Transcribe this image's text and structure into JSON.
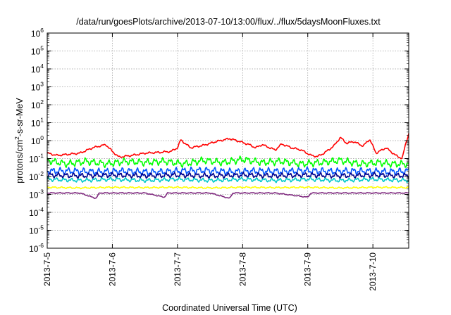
{
  "chart_data": {
    "type": "line",
    "title": "/data/run/goesPlots/archive/2013-07-10/13:00/flux/../flux/5daysMoonFluxes.txt",
    "xlabel": "Coordinated Universal Time (UTC)",
    "ylabel": {
      "base": "protons/cm",
      "sup": "2",
      "rest": "-s-sr-MeV"
    },
    "x_ticks": [
      "2013-7-5",
      "2013-7-6",
      "2013-7-7",
      "2013-7-8",
      "2013-7-9",
      "2013-7-10"
    ],
    "xlim_days": [
      0,
      5.55
    ],
    "y_scale": "log",
    "ylim_exp": [
      -6,
      6
    ],
    "y_ticks": [
      {
        "exp": -6,
        "label": "-6"
      },
      {
        "exp": -5,
        "label": "-5"
      },
      {
        "exp": -4,
        "label": "-4"
      },
      {
        "exp": -3,
        "label": "-3"
      },
      {
        "exp": -2,
        "label": "-2"
      },
      {
        "exp": -1,
        "label": "-1"
      },
      {
        "exp": 0,
        "label": "0"
      },
      {
        "exp": 1,
        "label": "1"
      },
      {
        "exp": 2,
        "label": "2"
      },
      {
        "exp": 3,
        "label": "3"
      },
      {
        "exp": 4,
        "label": "4"
      },
      {
        "exp": 5,
        "label": "5"
      },
      {
        "exp": 6,
        "label": "6"
      }
    ],
    "tick_base": "10",
    "grid": true,
    "series": [
      {
        "color": "#ff0000",
        "points": [
          [
            0,
            0.2
          ],
          [
            0.15,
            0.15
          ],
          [
            0.3,
            0.17
          ],
          [
            0.5,
            0.2
          ],
          [
            0.7,
            0.4
          ],
          [
            0.9,
            0.6
          ],
          [
            1.0,
            0.25
          ],
          [
            1.1,
            0.12
          ],
          [
            1.3,
            0.15
          ],
          [
            1.5,
            0.2
          ],
          [
            1.7,
            0.22
          ],
          [
            1.9,
            0.25
          ],
          [
            2.0,
            0.4
          ],
          [
            2.05,
            1.1
          ],
          [
            2.2,
            0.4
          ],
          [
            2.4,
            0.55
          ],
          [
            2.6,
            0.9
          ],
          [
            2.8,
            1.3
          ],
          [
            2.95,
            0.9
          ],
          [
            3.1,
            0.6
          ],
          [
            3.2,
            0.4
          ],
          [
            3.3,
            0.6
          ],
          [
            3.5,
            0.3
          ],
          [
            3.6,
            0.65
          ],
          [
            3.75,
            0.4
          ],
          [
            3.9,
            0.3
          ],
          [
            4.05,
            0.15
          ],
          [
            4.15,
            0.13
          ],
          [
            4.25,
            0.2
          ],
          [
            4.4,
            0.5
          ],
          [
            4.5,
            1.5
          ],
          [
            4.6,
            0.7
          ],
          [
            4.7,
            0.9
          ],
          [
            4.85,
            0.5
          ],
          [
            4.95,
            1.2
          ],
          [
            5.05,
            0.2
          ],
          [
            5.2,
            0.4
          ],
          [
            5.35,
            0.15
          ],
          [
            5.45,
            0.1
          ],
          [
            5.5,
            0.6
          ],
          [
            5.55,
            2.5
          ]
        ]
      },
      {
        "color": "#00ff00",
        "points": [
          [
            0,
            0.08
          ],
          [
            0.3,
            0.05
          ],
          [
            0.6,
            0.07
          ],
          [
            0.9,
            0.05
          ],
          [
            1.2,
            0.07
          ],
          [
            1.5,
            0.06
          ],
          [
            1.8,
            0.07
          ],
          [
            2.1,
            0.05
          ],
          [
            2.4,
            0.08
          ],
          [
            2.7,
            0.06
          ],
          [
            3.0,
            0.09
          ],
          [
            3.3,
            0.06
          ],
          [
            3.6,
            0.07
          ],
          [
            3.9,
            0.05
          ],
          [
            4.2,
            0.06
          ],
          [
            4.5,
            0.08
          ],
          [
            4.8,
            0.05
          ],
          [
            5.1,
            0.06
          ],
          [
            5.3,
            0.05
          ],
          [
            5.55,
            0.05
          ]
        ]
      },
      {
        "color": "#0055ff",
        "points": [
          [
            0,
            0.02
          ],
          [
            0.4,
            0.02
          ],
          [
            0.8,
            0.018
          ],
          [
            1.2,
            0.02
          ],
          [
            1.6,
            0.017
          ],
          [
            2.0,
            0.02
          ],
          [
            2.4,
            0.022
          ],
          [
            2.8,
            0.018
          ],
          [
            3.2,
            0.02
          ],
          [
            3.6,
            0.019
          ],
          [
            4.0,
            0.021
          ],
          [
            4.4,
            0.019
          ],
          [
            4.8,
            0.02
          ],
          [
            5.2,
            0.018
          ],
          [
            5.55,
            0.02
          ]
        ]
      },
      {
        "color": "#00008b",
        "points": [
          [
            0,
            0.012
          ],
          [
            0.5,
            0.011
          ],
          [
            1.0,
            0.012
          ],
          [
            1.5,
            0.011
          ],
          [
            2.0,
            0.012
          ],
          [
            2.5,
            0.011
          ],
          [
            3.0,
            0.012
          ],
          [
            3.5,
            0.011
          ],
          [
            4.0,
            0.012
          ],
          [
            4.5,
            0.011
          ],
          [
            5.0,
            0.012
          ],
          [
            5.55,
            0.011
          ]
        ]
      },
      {
        "color": "#00c8c8",
        "points": [
          [
            0,
            0.007
          ],
          [
            0.5,
            0.006
          ],
          [
            1.0,
            0.007
          ],
          [
            1.5,
            0.006
          ],
          [
            2.0,
            0.007
          ],
          [
            2.5,
            0.006
          ],
          [
            3.0,
            0.007
          ],
          [
            3.5,
            0.006
          ],
          [
            4.0,
            0.007
          ],
          [
            4.5,
            0.006
          ],
          [
            5.0,
            0.007
          ],
          [
            5.55,
            0.006
          ]
        ]
      },
      {
        "color": "#ffff00",
        "points": [
          [
            0,
            0.0025
          ],
          [
            0.5,
            0.0023
          ],
          [
            1.0,
            0.0025
          ],
          [
            1.5,
            0.0024
          ],
          [
            2.0,
            0.0025
          ],
          [
            2.5,
            0.0023
          ],
          [
            3.0,
            0.0025
          ],
          [
            3.5,
            0.0024
          ],
          [
            4.0,
            0.0025
          ],
          [
            4.5,
            0.0023
          ],
          [
            5.0,
            0.0025
          ],
          [
            5.55,
            0.0024
          ]
        ]
      },
      {
        "color": "#7f2a7f",
        "points": [
          [
            0,
            0.0012
          ],
          [
            0.5,
            0.0012
          ],
          [
            0.75,
            0.0006
          ],
          [
            0.8,
            0.0012
          ],
          [
            1.5,
            0.0012
          ],
          [
            1.8,
            0.0007
          ],
          [
            1.85,
            0.0012
          ],
          [
            2.5,
            0.0012
          ],
          [
            2.8,
            0.0006
          ],
          [
            2.85,
            0.0012
          ],
          [
            3.5,
            0.0012
          ],
          [
            4.0,
            0.0007
          ],
          [
            4.05,
            0.0012
          ],
          [
            5.0,
            0.0012
          ],
          [
            5.55,
            0.0012
          ]
        ]
      }
    ]
  }
}
